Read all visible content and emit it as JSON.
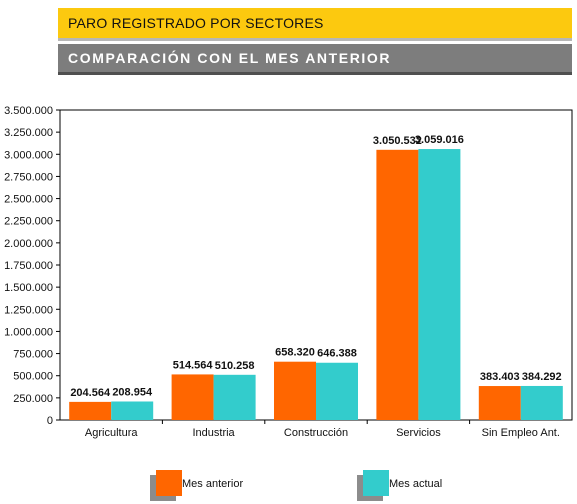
{
  "header": {
    "title": "PARO REGISTRADO POR SECTORES",
    "subtitle": "COMPARACIÓN CON EL MES ANTERIOR"
  },
  "chart_data": {
    "type": "bar",
    "categories": [
      "Agricultura",
      "Industria",
      "Construcción",
      "Servicios",
      "Sin Empleo Ant."
    ],
    "series": [
      {
        "name": "Mes anterior",
        "color": "#ff6600",
        "values": [
          204564,
          514564,
          658320,
          3050532,
          383403
        ],
        "labels": [
          "204.564",
          "514.564",
          "658.320",
          "3.050.532",
          "383.403"
        ]
      },
      {
        "name": "Mes actual",
        "color": "#33cccc",
        "values": [
          208954,
          510258,
          646388,
          3059016,
          384292
        ],
        "labels": [
          "208.954",
          "510.258",
          "646.388",
          "3.059.016",
          "384.292"
        ]
      }
    ],
    "ylim": [
      0,
      3500000
    ],
    "yticks": [
      0,
      250000,
      500000,
      750000,
      1000000,
      1250000,
      1500000,
      1750000,
      2000000,
      2250000,
      2500000,
      2750000,
      3000000,
      3250000,
      3500000
    ],
    "ytick_labels": [
      "0",
      "250.000",
      "500.000",
      "750.000",
      "1.000.000",
      "1.250.000",
      "1.500.000",
      "1.750.000",
      "2.000.000",
      "2.250.000",
      "2.500.000",
      "2.750.000",
      "3.000.000",
      "3.250.000",
      "3.500.000"
    ],
    "grid": false,
    "legend_position": "bottom"
  }
}
